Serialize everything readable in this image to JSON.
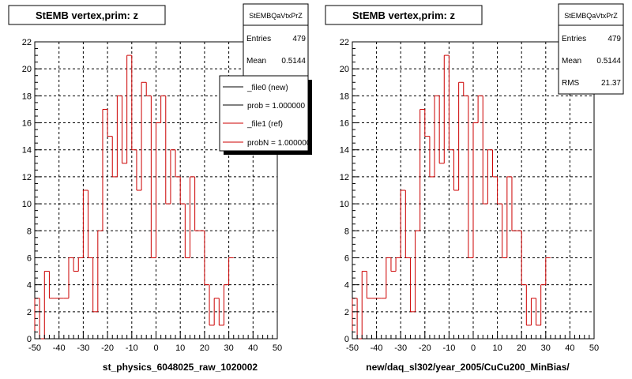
{
  "chart_data": [
    {
      "type": "bar",
      "title": "StEMB  vertex,prim: z",
      "xlabel": "st_physics_6048025_raw_1020002",
      "ylabel": "",
      "xlim": [
        -50,
        50
      ],
      "ylim": [
        0,
        22
      ],
      "xticks": [
        -50,
        -40,
        -30,
        -20,
        -10,
        0,
        10,
        20,
        30,
        40,
        50
      ],
      "yticks": [
        0,
        2,
        4,
        6,
        8,
        10,
        12,
        14,
        16,
        18,
        20,
        22
      ],
      "grid": true,
      "bin_edges_start": -50,
      "bin_width": 2,
      "values": [
        3,
        0,
        5,
        3,
        3,
        3,
        3,
        6,
        5,
        6,
        11,
        6,
        2,
        8,
        17,
        15,
        12,
        18,
        13,
        21,
        14,
        11,
        19,
        18,
        6,
        16,
        18,
        10,
        14,
        12,
        10,
        6,
        12,
        8,
        8,
        4,
        1,
        3,
        1,
        4,
        6
      ],
      "stats": {
        "name": "StEMBQaVtxPrZ",
        "entries": "479",
        "mean": "0.5144"
      },
      "legend": {
        "position": "top-right",
        "entries": [
          "_file0 (new)",
          "prob = 1.000000",
          "_file1 (ref)",
          "probN = 1.000000"
        ]
      }
    },
    {
      "type": "bar",
      "title": "StEMB  vertex,prim: z",
      "xlabel": "new/daq_sl302/year_2005/CuCu200_MinBias/",
      "ylabel": "",
      "xlim": [
        -50,
        50
      ],
      "ylim": [
        0,
        22
      ],
      "xticks": [
        -50,
        -40,
        -30,
        -20,
        -10,
        0,
        10,
        20,
        30,
        40,
        50
      ],
      "yticks": [
        0,
        2,
        4,
        6,
        8,
        10,
        12,
        14,
        16,
        18,
        20,
        22
      ],
      "grid": true,
      "bin_edges_start": -50,
      "bin_width": 2,
      "values": [
        3,
        0,
        5,
        3,
        3,
        3,
        3,
        6,
        5,
        6,
        11,
        6,
        2,
        8,
        17,
        15,
        12,
        18,
        13,
        21,
        14,
        11,
        19,
        18,
        6,
        16,
        18,
        10,
        14,
        12,
        10,
        6,
        12,
        8,
        8,
        4,
        1,
        3,
        1,
        4,
        6
      ],
      "stats": {
        "name": "StEMBQaVtxPrZ",
        "entries": "479",
        "mean": "0.5144",
        "rms": "21.37"
      }
    }
  ],
  "stat_labels": {
    "entries": "Entries",
    "mean": "Mean",
    "rms": "RMS"
  },
  "colors": {
    "histogram": "#cc0000",
    "legend_new": "#000000",
    "legend_ref": "#cc0000",
    "grid": "#000000"
  }
}
